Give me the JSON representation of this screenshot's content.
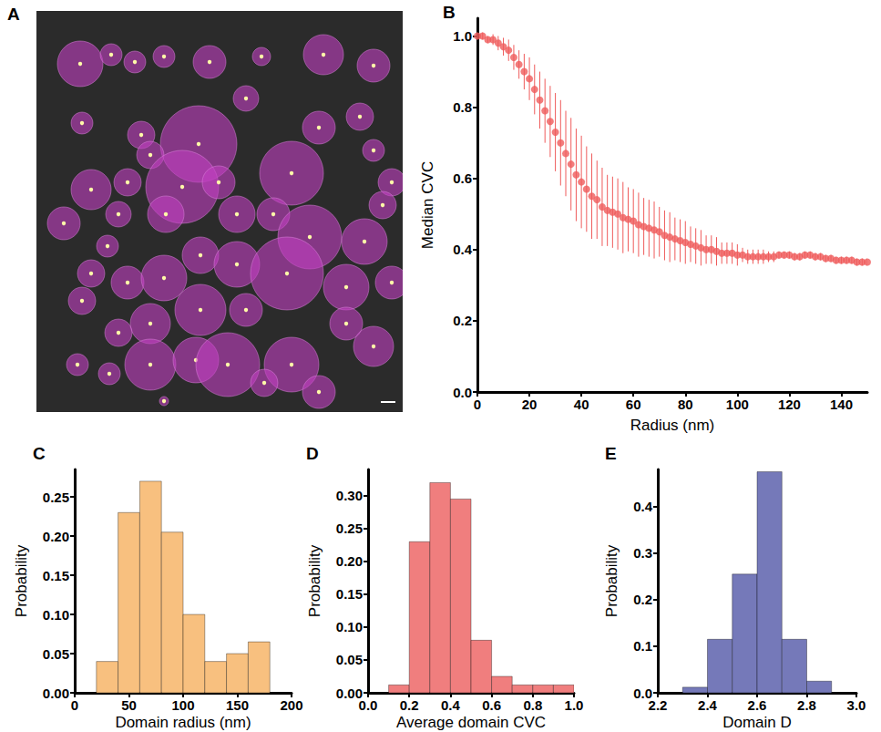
{
  "chart_data": [
    {
      "panel": "A",
      "type": "image_overlay",
      "xlim": [
        0,
        402
      ],
      "ylim": [
        0,
        440
      ],
      "tick_labels": false,
      "color": "#c23fc2",
      "domains": [
        {
          "x": 48,
          "y": 58,
          "r": 25
        },
        {
          "x": 82,
          "y": 48,
          "r": 12
        },
        {
          "x": 108,
          "y": 56,
          "r": 12
        },
        {
          "x": 140,
          "y": 50,
          "r": 12
        },
        {
          "x": 190,
          "y": 56,
          "r": 18
        },
        {
          "x": 247,
          "y": 50,
          "r": 10
        },
        {
          "x": 315,
          "y": 48,
          "r": 22
        },
        {
          "x": 370,
          "y": 60,
          "r": 18
        },
        {
          "x": 178,
          "y": 146,
          "r": 42
        },
        {
          "x": 115,
          "y": 136,
          "r": 15
        },
        {
          "x": 230,
          "y": 96,
          "r": 14
        },
        {
          "x": 50,
          "y": 123,
          "r": 12
        },
        {
          "x": 60,
          "y": 196,
          "r": 22
        },
        {
          "x": 100,
          "y": 188,
          "r": 15
        },
        {
          "x": 125,
          "y": 158,
          "r": 15
        },
        {
          "x": 160,
          "y": 193,
          "r": 40
        },
        {
          "x": 200,
          "y": 188,
          "r": 18
        },
        {
          "x": 280,
          "y": 178,
          "r": 35
        },
        {
          "x": 310,
          "y": 128,
          "r": 18
        },
        {
          "x": 355,
          "y": 116,
          "r": 15
        },
        {
          "x": 370,
          "y": 153,
          "r": 12
        },
        {
          "x": 390,
          "y": 188,
          "r": 15
        },
        {
          "x": 90,
          "y": 223,
          "r": 14
        },
        {
          "x": 30,
          "y": 233,
          "r": 18
        },
        {
          "x": 78,
          "y": 258,
          "r": 12
        },
        {
          "x": 142,
          "y": 223,
          "r": 20
        },
        {
          "x": 220,
          "y": 223,
          "r": 20
        },
        {
          "x": 260,
          "y": 223,
          "r": 18
        },
        {
          "x": 300,
          "y": 248,
          "r": 35
        },
        {
          "x": 360,
          "y": 253,
          "r": 25
        },
        {
          "x": 380,
          "y": 213,
          "r": 15
        },
        {
          "x": 60,
          "y": 288,
          "r": 15
        },
        {
          "x": 100,
          "y": 298,
          "r": 18
        },
        {
          "x": 140,
          "y": 293,
          "r": 25
        },
        {
          "x": 180,
          "y": 268,
          "r": 20
        },
        {
          "x": 220,
          "y": 278,
          "r": 25
        },
        {
          "x": 275,
          "y": 288,
          "r": 40
        },
        {
          "x": 340,
          "y": 303,
          "r": 25
        },
        {
          "x": 390,
          "y": 298,
          "r": 18
        },
        {
          "x": 50,
          "y": 318,
          "r": 15
        },
        {
          "x": 180,
          "y": 328,
          "r": 28
        },
        {
          "x": 230,
          "y": 328,
          "r": 18
        },
        {
          "x": 125,
          "y": 343,
          "r": 22
        },
        {
          "x": 90,
          "y": 353,
          "r": 15
        },
        {
          "x": 45,
          "y": 388,
          "r": 12
        },
        {
          "x": 80,
          "y": 398,
          "r": 12
        },
        {
          "x": 125,
          "y": 388,
          "r": 28
        },
        {
          "x": 175,
          "y": 383,
          "r": 25
        },
        {
          "x": 210,
          "y": 388,
          "r": 35
        },
        {
          "x": 280,
          "y": 388,
          "r": 30
        },
        {
          "x": 310,
          "y": 418,
          "r": 18
        },
        {
          "x": 250,
          "y": 408,
          "r": 15
        },
        {
          "x": 140,
          "y": 428,
          "r": 5
        },
        {
          "x": 370,
          "y": 368,
          "r": 22
        },
        {
          "x": 340,
          "y": 343,
          "r": 18
        }
      ]
    },
    {
      "panel": "B",
      "type": "scatter",
      "x_label": "Radius (nm)",
      "y_label": "Median CVC",
      "color": "#ef5b5b",
      "x": [
        0,
        2,
        4,
        6,
        8,
        10,
        12,
        14,
        16,
        18,
        20,
        22,
        24,
        26,
        28,
        30,
        32,
        34,
        36,
        38,
        40,
        42,
        44,
        46,
        48,
        50,
        52,
        54,
        56,
        58,
        60,
        62,
        64,
        66,
        68,
        70,
        72,
        74,
        76,
        78,
        80,
        82,
        84,
        86,
        88,
        90,
        92,
        94,
        96,
        98,
        100,
        102,
        104,
        106,
        108,
        110,
        112,
        114,
        116,
        118,
        120,
        122,
        124,
        126,
        128,
        130,
        132,
        134,
        136,
        138,
        140,
        142,
        144,
        146,
        148,
        150
      ],
      "values": [
        1.0,
        1.0,
        0.99,
        0.99,
        0.98,
        0.97,
        0.96,
        0.94,
        0.92,
        0.9,
        0.88,
        0.85,
        0.82,
        0.79,
        0.76,
        0.73,
        0.7,
        0.67,
        0.64,
        0.61,
        0.59,
        0.57,
        0.55,
        0.54,
        0.52,
        0.51,
        0.505,
        0.5,
        0.49,
        0.485,
        0.48,
        0.47,
        0.465,
        0.46,
        0.455,
        0.45,
        0.44,
        0.435,
        0.43,
        0.425,
        0.42,
        0.415,
        0.41,
        0.405,
        0.4,
        0.4,
        0.395,
        0.39,
        0.39,
        0.39,
        0.385,
        0.385,
        0.38,
        0.38,
        0.38,
        0.38,
        0.38,
        0.38,
        0.385,
        0.385,
        0.385,
        0.38,
        0.38,
        0.385,
        0.385,
        0.38,
        0.38,
        0.375,
        0.375,
        0.37,
        0.37,
        0.37,
        0.37,
        0.365,
        0.365,
        0.365
      ],
      "errors": [
        0.01,
        0.01,
        0.01,
        0.015,
        0.02,
        0.025,
        0.03,
        0.035,
        0.04,
        0.05,
        0.06,
        0.07,
        0.08,
        0.09,
        0.1,
        0.11,
        0.12,
        0.12,
        0.13,
        0.13,
        0.13,
        0.12,
        0.12,
        0.11,
        0.11,
        0.1,
        0.1,
        0.1,
        0.1,
        0.09,
        0.09,
        0.09,
        0.08,
        0.08,
        0.08,
        0.07,
        0.07,
        0.07,
        0.06,
        0.06,
        0.06,
        0.05,
        0.05,
        0.05,
        0.04,
        0.04,
        0.04,
        0.03,
        0.03,
        0.03,
        0.03,
        0.02,
        0.02,
        0.02,
        0.02,
        0.02,
        0.015,
        0.015,
        0.01,
        0.01,
        0.01,
        0.01,
        0.01,
        0.01,
        0.01,
        0.01,
        0.01,
        0.01,
        0.01,
        0.01,
        0.01,
        0.01,
        0.01,
        0.01,
        0.01,
        0.01
      ],
      "xlim": [
        0,
        150
      ],
      "xticks": [
        0,
        20,
        40,
        60,
        80,
        100,
        120,
        140
      ],
      "ylim": [
        0,
        1.05
      ],
      "yticks": [
        {
          "value": 0,
          "label": "0.0"
        },
        0.2,
        0.4,
        0.6,
        0.8,
        {
          "value": 1,
          "label": "1.0"
        }
      ]
    },
    {
      "panel": "C",
      "type": "histogram",
      "x_label": "Domain radius (nm)",
      "y_label": "Probability",
      "color": "#f8c07f",
      "bins": [
        20,
        40,
        60,
        80,
        100,
        120,
        140,
        160,
        180
      ],
      "values": [
        0.04,
        0.23,
        0.27,
        0.205,
        0.1,
        0.04,
        0.05,
        0.065
      ],
      "xlim": [
        0,
        200
      ],
      "xticks": [
        0,
        50,
        100,
        150,
        200
      ],
      "ylim": [
        0,
        0.285
      ],
      "yticks": [
        {
          "value": 0,
          "label": "0.00"
        },
        0.05,
        {
          "value": 0.1,
          "label": "0.10"
        },
        0.15,
        {
          "value": 0.2,
          "label": "0.20"
        },
        0.25
      ]
    },
    {
      "panel": "D",
      "type": "histogram",
      "x_label": "Average domain CVC",
      "y_label": "Probability",
      "color": "#f07e7e",
      "bins": [
        0.1,
        0.2,
        0.3,
        0.4,
        0.5,
        0.6,
        0.7,
        0.8,
        0.9,
        1.0
      ],
      "values": [
        0.012,
        0.23,
        0.32,
        0.295,
        0.08,
        0.025,
        0.012,
        0.012,
        0.012
      ],
      "xlim": [
        0,
        1
      ],
      "xticks": [
        {
          "value": 0,
          "label": "0.0"
        },
        0.2,
        0.4,
        0.6,
        0.8,
        {
          "value": 1,
          "label": "1.0"
        }
      ],
      "ylim": [
        0,
        0.34
      ],
      "yticks": [
        {
          "value": 0,
          "label": "0.00"
        },
        0.05,
        {
          "value": 0.1,
          "label": "0.10"
        },
        0.15,
        {
          "value": 0.2,
          "label": "0.20"
        },
        0.25,
        {
          "value": 0.3,
          "label": "0.30"
        }
      ]
    },
    {
      "panel": "E",
      "type": "histogram",
      "x_label": "Domain D",
      "y_label": "Probability",
      "color": "#7579b9",
      "bins": [
        2.3,
        2.4,
        2.5,
        2.6,
        2.7,
        2.8,
        2.9
      ],
      "values": [
        0.012,
        0.115,
        0.255,
        0.475,
        0.115,
        0.025
      ],
      "xlim": [
        2.2,
        3.0
      ],
      "xticks": [
        2.2,
        2.4,
        2.6,
        2.8,
        {
          "value": 3,
          "label": "3.0"
        }
      ],
      "ylim": [
        0,
        0.48
      ],
      "yticks": [
        {
          "value": 0,
          "label": "0.0"
        },
        0.1,
        0.2,
        0.3,
        0.4
      ]
    }
  ]
}
